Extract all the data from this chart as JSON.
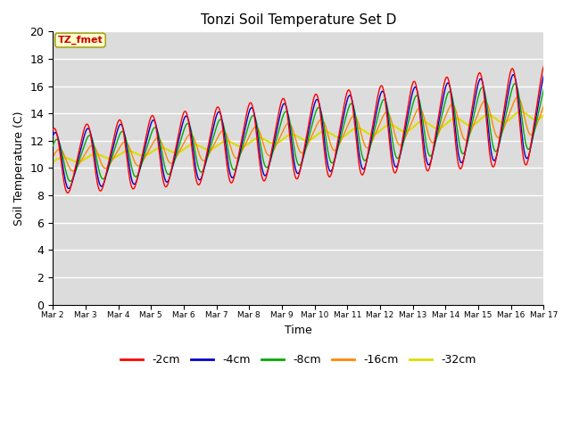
{
  "title": "Tonzi Soil Temperature Set D",
  "xlabel": "Time",
  "ylabel": "Soil Temperature (C)",
  "ylim": [
    0,
    20
  ],
  "yticks": [
    0,
    2,
    4,
    6,
    8,
    10,
    12,
    14,
    16,
    18,
    20
  ],
  "annotation_text": "TZ_fmet",
  "annotation_color": "#cc0000",
  "annotation_bg": "#ffffcc",
  "bg_color": "#dcdcdc",
  "series_colors": [
    "#ff0000",
    "#0000cc",
    "#00aa00",
    "#ff8800",
    "#dddd00"
  ],
  "series_labels": [
    "-2cm",
    "-4cm",
    "-8cm",
    "-16cm",
    "-32cm"
  ],
  "n_days": 15
}
